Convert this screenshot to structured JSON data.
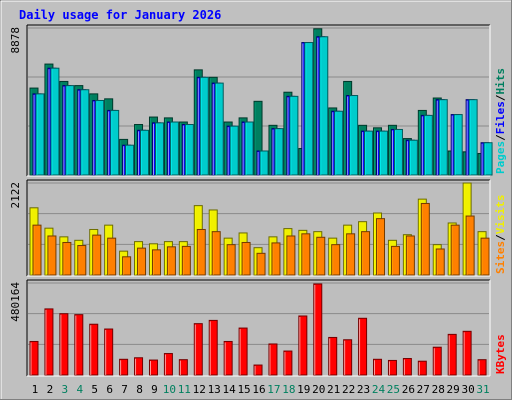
{
  "colors": {
    "background": "#c0c0c0",
    "plot_bg": "#bebebe",
    "gridline": "#8a8a8a",
    "title_color": "#0000ff",
    "hits": "#007f5f",
    "files": "#0000ff",
    "pages": "#00cccc",
    "visits": "#f0f000",
    "sites": "#ff8000",
    "kbytes": "#ff0000",
    "weekend_day": "#00805f",
    "weekday": "#000000"
  },
  "chart_data": {
    "type": "bar",
    "title": "Daily usage for January 2026",
    "days": [
      "1",
      "2",
      "3",
      "4",
      "5",
      "6",
      "7",
      "8",
      "9",
      "10",
      "11",
      "12",
      "13",
      "14",
      "15",
      "16",
      "17",
      "18",
      "19",
      "20",
      "21",
      "22",
      "23",
      "24",
      "25",
      "26",
      "27",
      "28",
      "29",
      "30",
      "31"
    ],
    "weekend_days": [
      "3",
      "4",
      "10",
      "11",
      "17",
      "18",
      "24",
      "25",
      "31"
    ],
    "panels": [
      {
        "max_label": "8878",
        "ymax": 8878,
        "legend": [
          "Pages",
          "Files",
          "Hits"
        ],
        "series": [
          {
            "name": "Hits",
            "values": [
              5250,
              6700,
              5650,
              5400,
              4900,
              4600,
              2150,
              3050,
              3500,
              3450,
              3200,
              6350,
              5900,
              3200,
              3450,
              4450,
              3000,
              5000,
              1600,
              8830,
              4050,
              5650,
              3000,
              2850,
              3000,
              2200,
              3900,
              4650,
              1450,
              1400,
              1300
            ]
          },
          {
            "name": "Files",
            "values": [
              4900,
              6450,
              5400,
              5150,
              4500,
              3900,
              1800,
              2700,
              3150,
              3200,
              3050,
              5900,
              5550,
              2950,
              3200,
              1450,
              2800,
              4750,
              8000,
              8350,
              3850,
              4800,
              2650,
              2650,
              2750,
              2100,
              3600,
              4550,
              3650,
              4550,
              1950
            ]
          },
          {
            "name": "Pages",
            "values": [
              4900,
              6450,
              5400,
              5150,
              4500,
              3900,
              1800,
              2700,
              3150,
              3200,
              3050,
              5900,
              5550,
              2950,
              3200,
              1450,
              2800,
              4750,
              8000,
              8350,
              3850,
              4800,
              2650,
              2650,
              2750,
              2100,
              3600,
              4550,
              3650,
              4550,
              1950
            ]
          }
        ]
      },
      {
        "max_label": "2122",
        "ymax": 2122,
        "legend": [
          "Sites",
          "Visits"
        ],
        "series": [
          {
            "name": "Visits",
            "values": [
              1550,
              1080,
              880,
              800,
              1050,
              1150,
              550,
              770,
              720,
              770,
              770,
              1600,
              1500,
              850,
              970,
              630,
              880,
              1070,
              1030,
              1000,
              850,
              1150,
              1230,
              1430,
              800,
              930,
              1750,
              700,
              1200,
              2122,
              1000
            ]
          },
          {
            "name": "Sites",
            "values": [
              1150,
              900,
              750,
              680,
              920,
              850,
              420,
              620,
              580,
              650,
              660,
              1050,
              1000,
              700,
              750,
              500,
              740,
              900,
              950,
              870,
              700,
              950,
              1000,
              1300,
              660,
              900,
              1650,
              600,
              1150,
              1360,
              850
            ]
          }
        ]
      },
      {
        "max_label": "480164",
        "ymax": 480164,
        "legend": [
          "KBytes"
        ],
        "series": [
          {
            "name": "KBytes",
            "values": [
              175000,
              345000,
              320000,
              315000,
              265000,
              240000,
              82000,
              90000,
              78000,
              112000,
              80000,
              268000,
              285000,
              175000,
              245000,
              52000,
              162000,
              125000,
              308000,
              475000,
              196000,
              184000,
              296000,
              82000,
              76000,
              86000,
              72000,
              145000,
              212000,
              228000,
              80000
            ]
          }
        ]
      }
    ]
  }
}
